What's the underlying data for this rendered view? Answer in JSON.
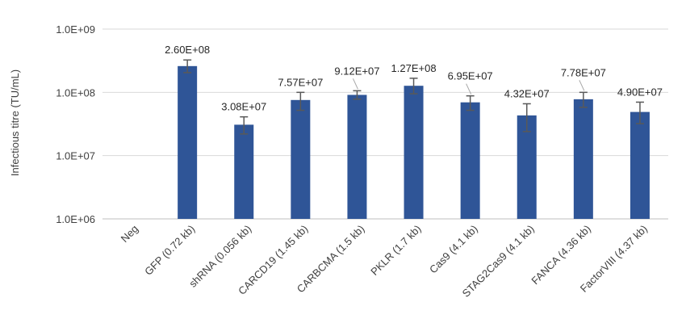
{
  "chart_data": {
    "type": "bar",
    "title": "",
    "xlabel": "",
    "ylabel": "Infectious titre (TU/mL)",
    "y_scale": "log",
    "ylim": [
      1000000,
      1000000000
    ],
    "yticks": [
      1000000,
      10000000,
      100000000,
      1000000000
    ],
    "ytick_labels": [
      "1.0E+06",
      "1.0E+07",
      "1.0E+08",
      "1.0E+09"
    ],
    "grid": true,
    "legend": "none",
    "bar_color": "#2f5597",
    "categories": [
      "Neg",
      "GFP (0.72 kb)",
      "shRNA (0.056 kb)",
      "CARCD19 (1.45 kb)",
      "CARBCMA (1.5 kb)",
      "PKLR (1.7 kb)",
      "Cas9 (4.1 kb)",
      "STAG2Cas9 (4.1 kb)",
      "FANCA (4.36 kb)",
      "FactorVIII (4.37 kb)"
    ],
    "values": [
      null,
      260000000,
      30800000,
      75700000,
      91200000,
      127000000,
      69500000,
      43200000,
      77800000,
      49000000
    ],
    "value_labels": [
      "",
      "2.60E+08",
      "3.08E+07",
      "7.57E+07",
      "9.12E+07",
      "1.27E+08",
      "6.95E+07",
      "4.32E+07",
      "7.78E+07",
      "4.90E+07"
    ],
    "error_low": [
      null,
      205000000,
      22000000,
      52000000,
      78000000,
      95000000,
      52000000,
      24000000,
      58000000,
      32000000
    ],
    "error_high": [
      null,
      325000000,
      41000000,
      100000000,
      106000000,
      167000000,
      88000000,
      66000000,
      100000000,
      70000000
    ]
  }
}
